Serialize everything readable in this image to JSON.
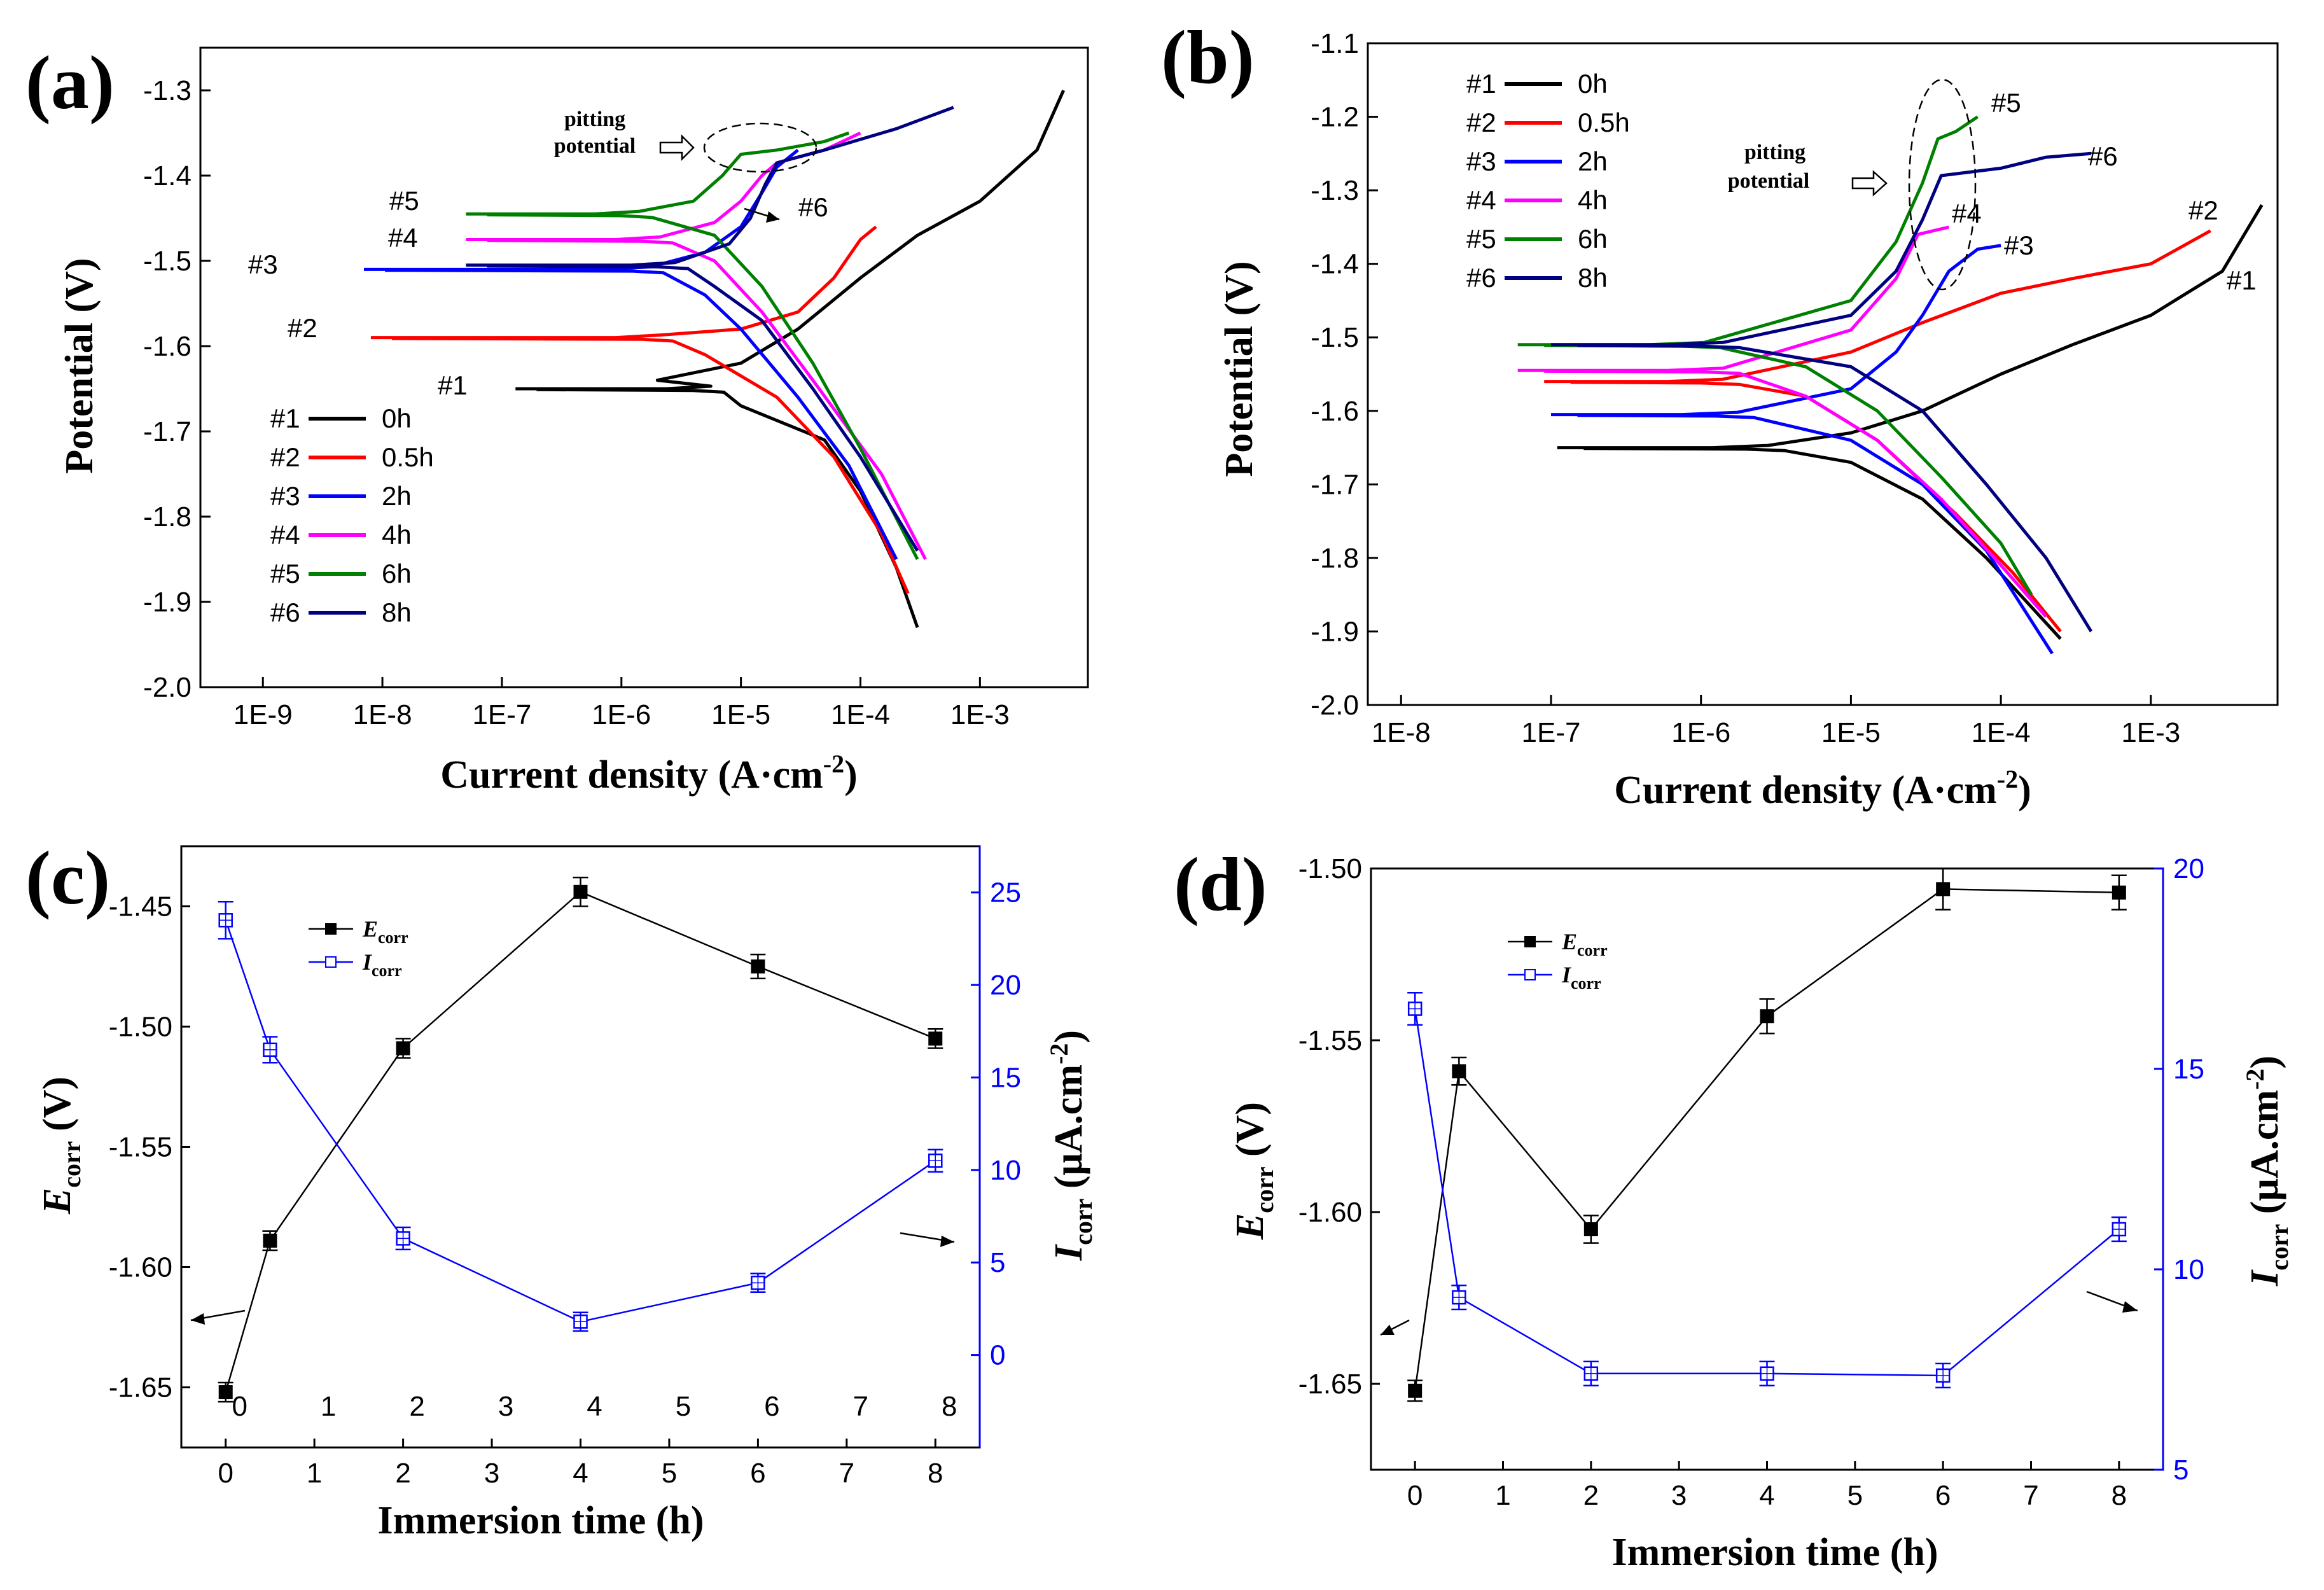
{
  "chart_data": [
    {
      "type": "line",
      "panel_label": "(a)",
      "xlabel": "Current density (A·cm",
      "xlabel_sup": "-2",
      "xlabel_end": ")",
      "ylabel": "Potential (V)",
      "xscale": "log",
      "xlim": [
        3e-10,
        0.008
      ],
      "ylim": [
        -2.0,
        -1.25
      ],
      "xticks": [
        1e-09,
        1e-08,
        1e-07,
        1e-06,
        1e-05,
        0.0001,
        0.001
      ],
      "xtick_labels": [
        "1E-9",
        "1E-8",
        "1E-7",
        "1E-6",
        "1E-5",
        "1E-4",
        "1E-3"
      ],
      "yticks": [
        -2.0,
        -1.9,
        -1.8,
        -1.7,
        -1.6,
        -1.5,
        -1.4,
        -1.3
      ],
      "ytick_labels": [
        "-2.0",
        "-1.9",
        "-1.8",
        "-1.7",
        "-1.6",
        "-1.5",
        "-1.4",
        "-1.3"
      ],
      "legend_position": "lower-left",
      "series": [
        {
          "name": "0h",
          "tag": "#1",
          "color": "#000000",
          "ecorr": -1.65,
          "plateau_start": 1.3e-07,
          "icorr_min": 8e-06,
          "anodic": [
            [
              2e-06,
              -1.64
            ],
            [
              1e-05,
              -1.62
            ],
            [
              3e-05,
              -1.58
            ],
            [
              0.0001,
              -1.52
            ],
            [
              0.0003,
              -1.47
            ],
            [
              0.001,
              -1.43
            ],
            [
              0.003,
              -1.37
            ],
            [
              0.005,
              -1.3
            ]
          ],
          "cathodic": [
            [
              1e-05,
              -1.67
            ],
            [
              5e-05,
              -1.71
            ],
            [
              0.0001,
              -1.77
            ],
            [
              0.0002,
              -1.86
            ],
            [
              0.0003,
              -1.93
            ]
          ]
        },
        {
          "name": "0.5h",
          "tag": "#2",
          "color": "#ff0000",
          "ecorr": -1.59,
          "plateau_start": 8e-09,
          "icorr_min": 3e-06,
          "anodic": [
            [
              1e-05,
              -1.58
            ],
            [
              3e-05,
              -1.56
            ],
            [
              6e-05,
              -1.52
            ],
            [
              0.0001,
              -1.475
            ],
            [
              0.000135,
              -1.46
            ]
          ],
          "cathodic": [
            [
              5e-06,
              -1.61
            ],
            [
              2e-05,
              -1.66
            ],
            [
              6e-05,
              -1.73
            ],
            [
              0.00015,
              -1.82
            ],
            [
              0.00025,
              -1.89
            ]
          ]
        },
        {
          "name": "2h",
          "tag": "#3",
          "color": "#0000ff",
          "ecorr": -1.51,
          "plateau_start": 7e-09,
          "icorr_min": 2.5e-06,
          "anodic": [
            [
              5e-06,
              -1.49
            ],
            [
              1e-05,
              -1.46
            ],
            [
              1.5e-05,
              -1.42
            ],
            [
              2e-05,
              -1.39
            ],
            [
              3e-05,
              -1.37
            ]
          ],
          "cathodic": [
            [
              5e-06,
              -1.54
            ],
            [
              1e-05,
              -1.58
            ],
            [
              3e-05,
              -1.66
            ],
            [
              8e-05,
              -1.74
            ],
            [
              0.0002,
              -1.85
            ]
          ]
        },
        {
          "name": "4h",
          "tag": "#4",
          "color": "#ff00ff",
          "ecorr": -1.475,
          "plateau_start": 5e-08,
          "icorr_min": 3e-06,
          "anodic": [
            [
              6e-06,
              -1.455
            ],
            [
              1e-05,
              -1.43
            ],
            [
              1.5e-05,
              -1.4
            ],
            [
              2e-05,
              -1.385
            ],
            [
              5e-05,
              -1.37
            ],
            [
              0.0001,
              -1.35
            ]
          ],
          "cathodic": [
            [
              6e-06,
              -1.5
            ],
            [
              1.5e-05,
              -1.56
            ],
            [
              4e-05,
              -1.64
            ],
            [
              0.00015,
              -1.75
            ],
            [
              0.00035,
              -1.85
            ]
          ]
        },
        {
          "name": "6h",
          "tag": "#5",
          "color": "#008000",
          "ecorr": -1.445,
          "plateau_start": 5e-08,
          "icorr_min": 2e-06,
          "anodic": [
            [
              4e-06,
              -1.43
            ],
            [
              7e-06,
              -1.4
            ],
            [
              1e-05,
              -1.375
            ],
            [
              2e-05,
              -1.37
            ],
            [
              5e-05,
              -1.36
            ],
            [
              8e-05,
              -1.35
            ]
          ],
          "cathodic": [
            [
              6e-06,
              -1.47
            ],
            [
              1.5e-05,
              -1.53
            ],
            [
              4e-05,
              -1.62
            ],
            [
              0.0001,
              -1.72
            ],
            [
              0.0003,
              -1.85
            ]
          ]
        },
        {
          "name": "8h",
          "tag": "#6",
          "color": "#000080",
          "ecorr": -1.505,
          "plateau_start": 5e-08,
          "icorr_min": 4e-06,
          "anodic": [
            [
              8e-06,
              -1.48
            ],
            [
              1.2e-05,
              -1.45
            ],
            [
              1.6e-05,
              -1.41
            ],
            [
              2e-05,
              -1.385
            ],
            [
              5e-05,
              -1.37
            ],
            [
              0.0002,
              -1.345
            ],
            [
              0.0006,
              -1.32
            ]
          ],
          "cathodic": [
            [
              6e-06,
              -1.53
            ],
            [
              1.5e-05,
              -1.57
            ],
            [
              4e-05,
              -1.65
            ],
            [
              0.0001,
              -1.73
            ],
            [
              0.0003,
              -1.84
            ]
          ]
        }
      ],
      "annotations": {
        "pitting_1": "pitting",
        "pitting_2": "potential",
        "label_6": "#6"
      }
    },
    {
      "type": "line",
      "panel_label": "(b)",
      "xlabel": "Current density (A·cm",
      "xlabel_sup": "-2",
      "xlabel_end": ")",
      "ylabel": "Potential (V)",
      "xscale": "log",
      "xlim": [
        6e-09,
        0.007
      ],
      "ylim": [
        -2.0,
        -1.1
      ],
      "xticks": [
        1e-08,
        1e-07,
        1e-06,
        1e-05,
        0.0001,
        0.001
      ],
      "xtick_labels": [
        "1E-8",
        "1E-7",
        "1E-6",
        "1E-5",
        "1E-4",
        "1E-3"
      ],
      "yticks": [
        -2.0,
        -1.9,
        -1.8,
        -1.7,
        -1.6,
        -1.5,
        -1.4,
        -1.3,
        -1.2,
        -1.1
      ],
      "ytick_labels": [
        "-2.0",
        "-1.9",
        "-1.8",
        "-1.7",
        "-1.6",
        "-1.5",
        "-1.4",
        "-1.3",
        "-1.2",
        "-1.1"
      ],
      "legend_position": "top-left",
      "series": [
        {
          "name": "0h",
          "tag": "#1",
          "color": "#000000",
          "ecorr": -1.65,
          "plateau_start": 1.1e-07,
          "icorr_min": 4e-06,
          "anodic": [
            [
              1e-05,
              -1.63
            ],
            [
              3e-05,
              -1.6
            ],
            [
              0.0001,
              -1.55
            ],
            [
              0.0003,
              -1.51
            ],
            [
              0.001,
              -1.47
            ],
            [
              0.003,
              -1.41
            ],
            [
              0.0055,
              -1.32
            ]
          ],
          "cathodic": [
            [
              1e-05,
              -1.67
            ],
            [
              3e-05,
              -1.72
            ],
            [
              8e-05,
              -1.8
            ],
            [
              0.00025,
              -1.91
            ]
          ]
        },
        {
          "name": "0.5h",
          "tag": "#2",
          "color": "#ff0000",
          "ecorr": -1.56,
          "plateau_start": 9e-08,
          "icorr_min": 2e-06,
          "anodic": [
            [
              1e-05,
              -1.52
            ],
            [
              3e-05,
              -1.48
            ],
            [
              0.0001,
              -1.44
            ],
            [
              0.0003,
              -1.42
            ],
            [
              0.001,
              -1.4
            ],
            [
              0.0025,
              -1.355
            ]
          ],
          "cathodic": [
            [
              5e-06,
              -1.58
            ],
            [
              1.5e-05,
              -1.64
            ],
            [
              5e-05,
              -1.74
            ],
            [
              0.00012,
              -1.82
            ],
            [
              0.00025,
              -1.9
            ]
          ]
        },
        {
          "name": "2h",
          "tag": "#3",
          "color": "#0000ff",
          "ecorr": -1.605,
          "plateau_start": 1e-07,
          "icorr_min": 2.5e-06,
          "anodic": [
            [
              1e-05,
              -1.57
            ],
            [
              2e-05,
              -1.52
            ],
            [
              3e-05,
              -1.47
            ],
            [
              4.5e-05,
              -1.41
            ],
            [
              7e-05,
              -1.38
            ],
            [
              0.0001,
              -1.375
            ]
          ],
          "cathodic": [
            [
              1e-05,
              -1.64
            ],
            [
              3e-05,
              -1.7
            ],
            [
              8e-05,
              -1.79
            ],
            [
              0.00022,
              -1.93
            ]
          ]
        },
        {
          "name": "4h",
          "tag": "#4",
          "color": "#ff00ff",
          "ecorr": -1.545,
          "plateau_start": 6e-08,
          "icorr_min": 2e-06,
          "anodic": [
            [
              1e-05,
              -1.49
            ],
            [
              2e-05,
              -1.42
            ],
            [
              2.8e-05,
              -1.36
            ],
            [
              4.5e-05,
              -1.35
            ]
          ],
          "cathodic": [
            [
              5e-06,
              -1.58
            ],
            [
              1.5e-05,
              -1.64
            ],
            [
              4e-05,
              -1.72
            ],
            [
              0.0001,
              -1.81
            ],
            [
              0.0002,
              -1.88
            ]
          ]
        },
        {
          "name": "6h",
          "tag": "#5",
          "color": "#008000",
          "ecorr": -1.51,
          "plateau_start": 6e-08,
          "icorr_min": 1.5e-06,
          "anodic": [
            [
              1e-05,
              -1.45
            ],
            [
              2e-05,
              -1.37
            ],
            [
              3e-05,
              -1.29
            ],
            [
              3.8e-05,
              -1.23
            ],
            [
              5e-05,
              -1.22
            ],
            [
              7e-05,
              -1.2
            ]
          ],
          "cathodic": [
            [
              5e-06,
              -1.54
            ],
            [
              1.5e-05,
              -1.6
            ],
            [
              4e-05,
              -1.69
            ],
            [
              0.0001,
              -1.78
            ],
            [
              0.00016,
              -1.85
            ]
          ]
        },
        {
          "name": "8h",
          "tag": "#6",
          "color": "#000080",
          "ecorr": -1.51,
          "plateau_start": 1e-07,
          "icorr_min": 2e-06,
          "anodic": [
            [
              1e-05,
              -1.47
            ],
            [
              2e-05,
              -1.41
            ],
            [
              3e-05,
              -1.34
            ],
            [
              4e-05,
              -1.28
            ],
            [
              0.0001,
              -1.27
            ],
            [
              0.0002,
              -1.255
            ],
            [
              0.0004,
              -1.25
            ]
          ],
          "cathodic": [
            [
              1e-05,
              -1.54
            ],
            [
              3e-05,
              -1.6
            ],
            [
              8e-05,
              -1.7
            ],
            [
              0.0002,
              -1.8
            ],
            [
              0.0004,
              -1.9
            ]
          ]
        }
      ],
      "tag_positions": [
        "#1",
        "#2",
        "#3",
        "#4",
        "#5",
        "#6"
      ],
      "annotations": {
        "pitting_1": "pitting",
        "pitting_2": "potential"
      }
    },
    {
      "type": "line",
      "panel_label": "(c)",
      "xlabel": "Immersion time (h)",
      "ylabel_left": "E",
      "ylabel_left_sub": "corr",
      "ylabel_left_end": " (V)",
      "ylabel_right": "I",
      "ylabel_right_sub": "corr",
      "ylabel_right_end": " (μA.cm",
      "ylabel_right_sup": "-2",
      "ylabel_right_close": ")",
      "xlim": [
        -0.5,
        8.5
      ],
      "ylim_left": [
        -1.675,
        -1.425
      ],
      "ylim_right": [
        -5,
        27.5
      ],
      "xticks": [
        0,
        1,
        2,
        3,
        4,
        5,
        6,
        7,
        8
      ],
      "xtick_labels": [
        "0",
        "1",
        "2",
        "3",
        "4",
        "5",
        "6",
        "7",
        "8"
      ],
      "inner_xtick_labels": [
        "0",
        "1",
        "2",
        "3",
        "4",
        "5",
        "6",
        "7",
        "8"
      ],
      "yticks_left": [
        -1.65,
        -1.6,
        -1.55,
        -1.5,
        -1.45
      ],
      "ytick_labels_left": [
        "-1.65",
        "-1.60",
        "-1.55",
        "-1.50",
        "-1.45"
      ],
      "yticks_right": [
        0,
        5,
        10,
        15,
        20,
        25
      ],
      "ytick_labels_right": [
        "0",
        "5",
        "10",
        "15",
        "20",
        "25"
      ],
      "series": [
        {
          "name": "E",
          "name_sub": "corr",
          "axis": "left",
          "color": "#000000",
          "marker": "filled-square",
          "x": [
            0,
            0.5,
            2,
            4,
            6,
            8
          ],
          "y": [
            -1.652,
            -1.589,
            -1.509,
            -1.444,
            -1.475,
            -1.505
          ],
          "err": [
            0.004,
            0.004,
            0.004,
            0.006,
            0.005,
            0.004
          ]
        },
        {
          "name": "I",
          "name_sub": "corr",
          "axis": "right",
          "color": "#0000ff",
          "marker": "open-square",
          "x": [
            0,
            0.5,
            2,
            4,
            6,
            8
          ],
          "y": [
            23.5,
            16.5,
            6.3,
            1.8,
            3.9,
            10.5
          ],
          "err": [
            1.0,
            0.7,
            0.6,
            0.5,
            0.5,
            0.6
          ]
        }
      ],
      "legend_position": "top-left"
    },
    {
      "type": "line",
      "panel_label": "(d)",
      "xlabel": "Immersion time (h)",
      "ylabel_left": "E",
      "ylabel_left_sub": "corr",
      "ylabel_left_end": " (V)",
      "ylabel_right": "I",
      "ylabel_right_sub": "corr",
      "ylabel_right_end": " (μA.cm",
      "ylabel_right_sup": "-2",
      "ylabel_right_close": ")",
      "xlim": [
        -0.5,
        8.5
      ],
      "ylim_left": [
        -1.675,
        -1.5
      ],
      "ylim_right": [
        5,
        20
      ],
      "xticks": [
        0,
        1,
        2,
        3,
        4,
        5,
        6,
        7,
        8
      ],
      "xtick_labels": [
        "0",
        "1",
        "2",
        "3",
        "4",
        "5",
        "6",
        "7",
        "8"
      ],
      "yticks_left": [
        -1.65,
        -1.6,
        -1.55,
        -1.5
      ],
      "ytick_labels_left": [
        "-1.65",
        "-1.60",
        "-1.55",
        "-1.50"
      ],
      "yticks_right": [
        5,
        10,
        15,
        20
      ],
      "ytick_labels_right": [
        "5",
        "10",
        "15",
        "20"
      ],
      "series": [
        {
          "name": "E",
          "name_sub": "corr",
          "axis": "left",
          "color": "#000000",
          "marker": "filled-square",
          "x": [
            0,
            0.5,
            2,
            4,
            6,
            8
          ],
          "y": [
            -1.652,
            -1.559,
            -1.605,
            -1.543,
            -1.506,
            -1.507
          ],
          "err": [
            0.003,
            0.004,
            0.004,
            0.005,
            0.006,
            0.005
          ]
        },
        {
          "name": "I",
          "name_sub": "corr",
          "axis": "right",
          "color": "#0000ff",
          "marker": "open-square",
          "x": [
            0,
            0.5,
            2,
            4,
            6,
            8
          ],
          "y": [
            16.5,
            9.3,
            7.4,
            7.4,
            7.35,
            11.0
          ],
          "err": [
            0.4,
            0.3,
            0.3,
            0.3,
            0.3,
            0.3
          ]
        }
      ],
      "legend_position": "top-left"
    }
  ]
}
